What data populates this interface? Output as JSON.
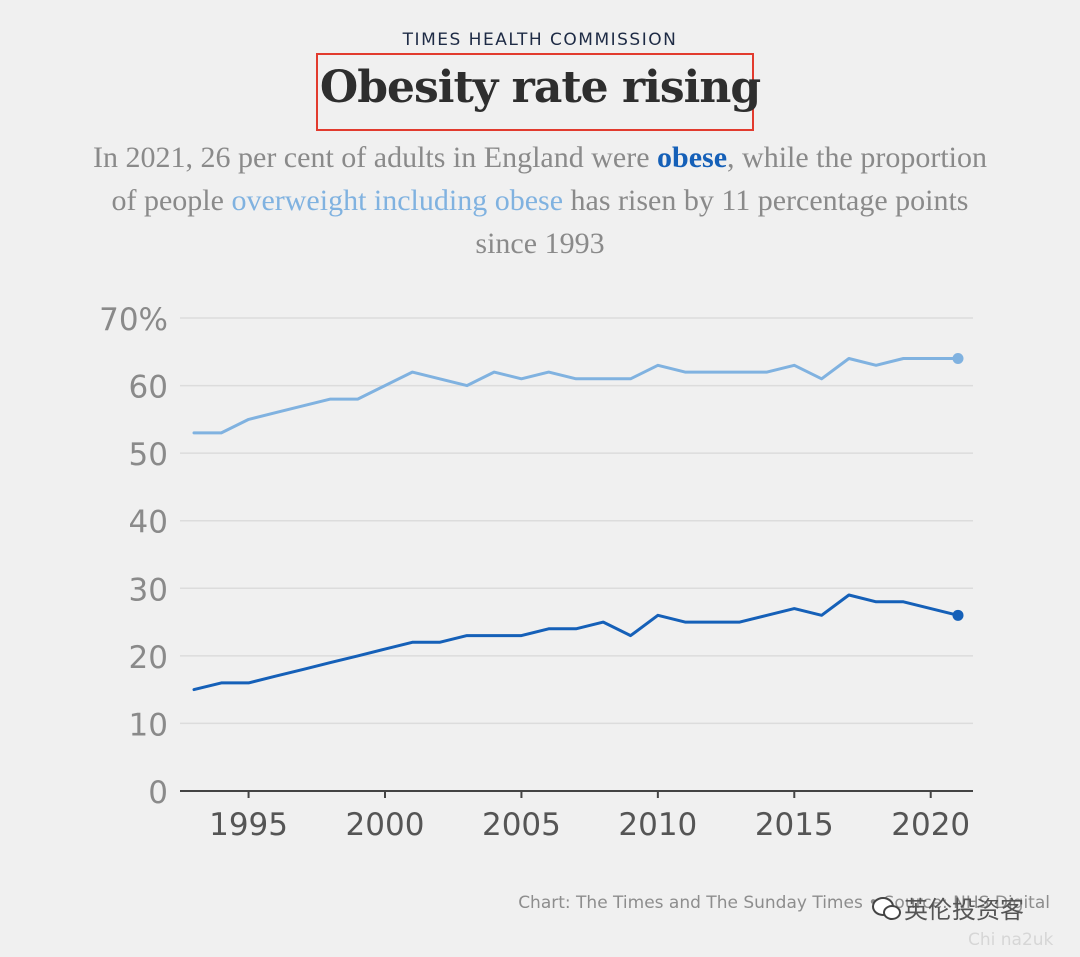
{
  "header": {
    "kicker": "TIMES HEALTH COMMISSION",
    "title": "Obesity rate rising",
    "subtitle_parts": {
      "p1": "In 2021, 26 per cent of adults in England were ",
      "obese": "obese",
      "p2": ", while the proportion of people ",
      "overweight": "overweight including obese",
      "p3": " has risen by 11 percentage points since 1993"
    }
  },
  "footer": {
    "source": "Chart: The Times and The Sunday Times • Source: NHS Digital",
    "watermark": "英伦投资客",
    "watermark_sub": "Chi na2uk"
  },
  "colors": {
    "obese": "#1560b8",
    "overweight": "#80b2e0",
    "grid": "#dcdcdc",
    "axis": "#444444",
    "tick_label": "#8a8a8a",
    "highlight_box": "#e23b2e"
  },
  "chart_data": {
    "type": "line",
    "title": "Obesity rate rising",
    "xlabel": "",
    "ylabel": "",
    "xlim": [
      1993,
      2021
    ],
    "ylim": [
      0,
      70
    ],
    "xticks": [
      1995,
      2000,
      2005,
      2010,
      2015,
      2020
    ],
    "yticks": [
      0,
      10,
      20,
      30,
      40,
      50,
      60,
      70
    ],
    "ytick_labels": [
      "0",
      "10",
      "20",
      "30",
      "40",
      "50",
      "60",
      "70%"
    ],
    "grid": true,
    "legend": "inline in subtitle",
    "x": [
      1993,
      1994,
      1995,
      1996,
      1997,
      1998,
      1999,
      2000,
      2001,
      2002,
      2003,
      2004,
      2005,
      2006,
      2007,
      2008,
      2009,
      2010,
      2011,
      2012,
      2013,
      2014,
      2015,
      2016,
      2017,
      2018,
      2019,
      2021
    ],
    "series": [
      {
        "name": "overweight including obese",
        "values": [
          53,
          53,
          55,
          56,
          57,
          58,
          58,
          60,
          62,
          61,
          60,
          62,
          61,
          62,
          61,
          61,
          61,
          63,
          62,
          62,
          62,
          62,
          63,
          61,
          64,
          63,
          64,
          64
        ]
      },
      {
        "name": "obese",
        "values": [
          15,
          16,
          16,
          17,
          18,
          19,
          20,
          21,
          22,
          22,
          23,
          23,
          23,
          24,
          24,
          25,
          23,
          26,
          25,
          25,
          25,
          26,
          27,
          26,
          29,
          28,
          28,
          26
        ]
      }
    ]
  }
}
